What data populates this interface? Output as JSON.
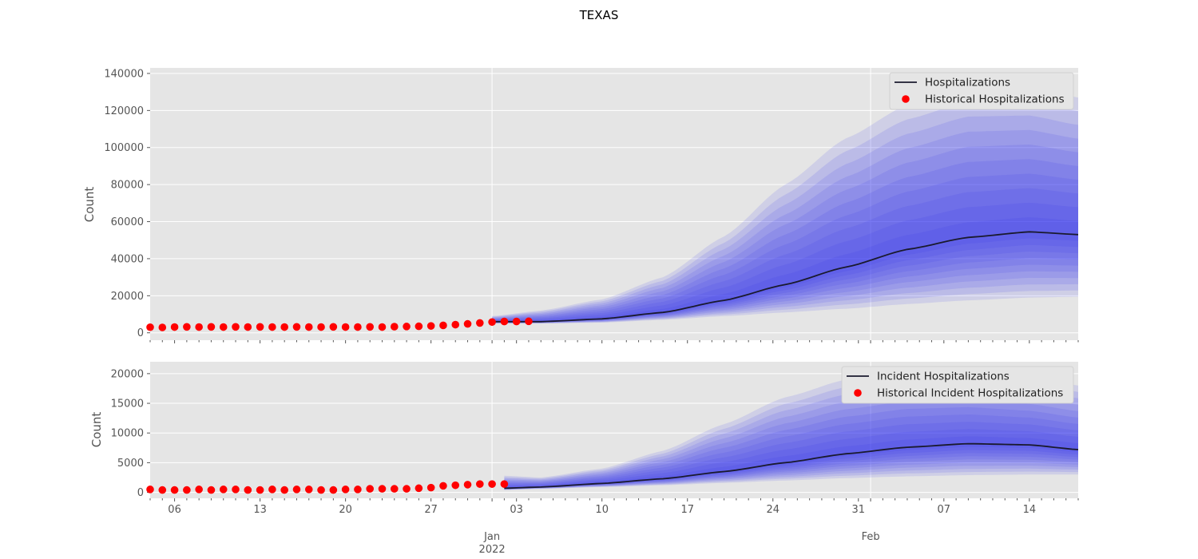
{
  "figure_title": "TEXAS",
  "colors": {
    "panel_bg": "#e5e5e5",
    "grid": "#ffffff",
    "forecast_line": "#1a1a2e",
    "historical_points": "#ff0000",
    "band_fill": "#3333ee",
    "tick_text": "#555555"
  },
  "x_axis": {
    "range": [
      "2021-12-04",
      "2022-02-18"
    ],
    "major_ticks": [
      {
        "date": "2021-12-06",
        "label": "06"
      },
      {
        "date": "2021-12-13",
        "label": "13"
      },
      {
        "date": "2021-12-20",
        "label": "20"
      },
      {
        "date": "2021-12-27",
        "label": "27"
      },
      {
        "date": "2022-01-03",
        "label": "03"
      },
      {
        "date": "2022-01-10",
        "label": "10"
      },
      {
        "date": "2022-01-17",
        "label": "17"
      },
      {
        "date": "2022-01-24",
        "label": "24"
      },
      {
        "date": "2022-01-31",
        "label": "31"
      },
      {
        "date": "2022-02-07",
        "label": "07"
      },
      {
        "date": "2022-02-14",
        "label": "14"
      }
    ],
    "month_ticks": [
      {
        "date": "2022-01-01",
        "label": "Jan",
        "sub": "2022"
      },
      {
        "date": "2022-02-01",
        "label": "Feb",
        "sub": ""
      }
    ]
  },
  "chart_data": [
    {
      "type": "area",
      "ylabel": "Count",
      "ylim": [
        -4000,
        143000
      ],
      "yticks": [
        0,
        20000,
        40000,
        60000,
        80000,
        100000,
        120000,
        140000
      ],
      "grid": true,
      "legend": {
        "placement": "top-right",
        "entries": [
          "Hospitalizations",
          "Historical Hospitalizations"
        ]
      },
      "historical": {
        "name": "Historical Hospitalizations",
        "start": "2021-12-04",
        "values": [
          3000,
          2900,
          3100,
          3200,
          3100,
          3200,
          3100,
          3200,
          3100,
          3200,
          3100,
          3100,
          3200,
          3100,
          3100,
          3200,
          3100,
          3100,
          3200,
          3100,
          3300,
          3400,
          3500,
          3700,
          4000,
          4400,
          4800,
          5300,
          5800,
          6100,
          6100,
          6200
        ]
      },
      "forecast": {
        "name": "Hospitalizations",
        "dates": [
          "2022-01-01",
          "2022-01-05",
          "2022-01-10",
          "2022-01-15",
          "2022-01-20",
          "2022-01-25",
          "2022-01-30",
          "2022-02-04",
          "2022-02-09",
          "2022-02-14",
          "2022-02-18"
        ],
        "median": [
          6000,
          6000,
          7500,
          11000,
          17500,
          26000,
          35500,
          45000,
          51500,
          54500,
          53000
        ],
        "lower_outer": [
          5000,
          5000,
          5500,
          7000,
          9000,
          11000,
          13000,
          15500,
          17500,
          19000,
          19500
        ],
        "upper_outer": [
          9000,
          12000,
          18000,
          30000,
          52000,
          80000,
          105000,
          123000,
          133000,
          133000,
          127000
        ]
      }
    },
    {
      "type": "area",
      "ylabel": "Count",
      "ylim": [
        -1000,
        22000
      ],
      "yticks": [
        0,
        5000,
        10000,
        15000,
        20000
      ],
      "grid": true,
      "legend": {
        "placement": "top-right",
        "entries": [
          "Incident Hospitalizations",
          "Historical Incident Hospitalizations"
        ]
      },
      "historical": {
        "name": "Historical Incident Hospitalizations",
        "start": "2021-12-04",
        "values": [
          500,
          400,
          400,
          400,
          500,
          400,
          500,
          500,
          400,
          400,
          500,
          400,
          500,
          500,
          400,
          400,
          500,
          500,
          600,
          600,
          600,
          600,
          700,
          800,
          1100,
          1200,
          1300,
          1400,
          1400,
          1400
        ]
      },
      "forecast": {
        "name": "Incident Hospitalizations",
        "dates": [
          "2022-01-02",
          "2022-01-05",
          "2022-01-10",
          "2022-01-15",
          "2022-01-20",
          "2022-01-25",
          "2022-01-30",
          "2022-02-04",
          "2022-02-09",
          "2022-02-14",
          "2022-02-18"
        ],
        "median": [
          700,
          900,
          1500,
          2300,
          3500,
          5000,
          6500,
          7600,
          8200,
          8000,
          7200
        ],
        "lower_outer": [
          400,
          600,
          900,
          1200,
          1600,
          2000,
          2400,
          2700,
          2900,
          3000,
          3000
        ],
        "upper_outer": [
          2800,
          2500,
          4000,
          7000,
          11500,
          16000,
          19000,
          20500,
          20500,
          19500,
          18000
        ]
      }
    }
  ]
}
